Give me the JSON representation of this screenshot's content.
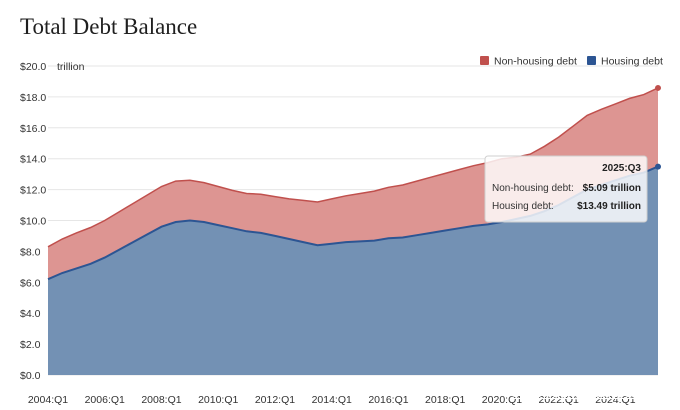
{
  "chart_data": {
    "type": "area",
    "title": "Total Debt Balance",
    "unit_label": "trillion",
    "y_ticks": [
      "$0.0",
      "$2.0",
      "$4.0",
      "$6.0",
      "$8.0",
      "$10.0",
      "$12.0",
      "$14.0",
      "$16.0",
      "$18.0",
      "$20.0"
    ],
    "ylim": [
      0,
      20
    ],
    "x_ticks": [
      "2004:Q1",
      "2006:Q1",
      "2008:Q1",
      "2010:Q1",
      "2012:Q1",
      "2014:Q1",
      "2016:Q1",
      "2018:Q1",
      "2020:Q1",
      "2022:Q1",
      "2024:Q1"
    ],
    "x_start_year": 2004,
    "x_end": 2025.5,
    "stacked": true,
    "series": [
      {
        "name": "Housing debt",
        "color": "#2c5593",
        "fill": "#7391b4",
        "points": [
          [
            2004.0,
            6.2
          ],
          [
            2004.5,
            6.6
          ],
          [
            2005.0,
            6.9
          ],
          [
            2005.5,
            7.2
          ],
          [
            2006.0,
            7.6
          ],
          [
            2006.5,
            8.1
          ],
          [
            2007.0,
            8.6
          ],
          [
            2007.5,
            9.1
          ],
          [
            2008.0,
            9.6
          ],
          [
            2008.5,
            9.9
          ],
          [
            2009.0,
            10.0
          ],
          [
            2009.5,
            9.9
          ],
          [
            2010.0,
            9.7
          ],
          [
            2010.5,
            9.5
          ],
          [
            2011.0,
            9.3
          ],
          [
            2011.5,
            9.2
          ],
          [
            2012.0,
            9.0
          ],
          [
            2012.5,
            8.8
          ],
          [
            2013.0,
            8.6
          ],
          [
            2013.5,
            8.4
          ],
          [
            2014.0,
            8.5
          ],
          [
            2014.5,
            8.6
          ],
          [
            2015.0,
            8.65
          ],
          [
            2015.5,
            8.7
          ],
          [
            2016.0,
            8.85
          ],
          [
            2016.5,
            8.9
          ],
          [
            2017.0,
            9.05
          ],
          [
            2017.5,
            9.2
          ],
          [
            2018.0,
            9.35
          ],
          [
            2018.5,
            9.5
          ],
          [
            2019.0,
            9.65
          ],
          [
            2019.5,
            9.75
          ],
          [
            2020.0,
            9.9
          ],
          [
            2020.5,
            10.1
          ],
          [
            2021.0,
            10.3
          ],
          [
            2021.5,
            10.6
          ],
          [
            2022.0,
            11.0
          ],
          [
            2022.5,
            11.5
          ],
          [
            2023.0,
            12.0
          ],
          [
            2023.5,
            12.3
          ],
          [
            2024.0,
            12.6
          ],
          [
            2024.5,
            12.9
          ],
          [
            2025.0,
            13.1
          ],
          [
            2025.5,
            13.49
          ]
        ]
      },
      {
        "name": "Non-housing debt",
        "color": "#c0504d",
        "fill": "#dd9592",
        "points": [
          [
            2004.0,
            2.1
          ],
          [
            2004.5,
            2.2
          ],
          [
            2005.0,
            2.3
          ],
          [
            2005.5,
            2.35
          ],
          [
            2006.0,
            2.4
          ],
          [
            2006.5,
            2.45
          ],
          [
            2007.0,
            2.5
          ],
          [
            2007.5,
            2.55
          ],
          [
            2008.0,
            2.6
          ],
          [
            2008.5,
            2.65
          ],
          [
            2009.0,
            2.6
          ],
          [
            2009.5,
            2.55
          ],
          [
            2010.0,
            2.5
          ],
          [
            2010.5,
            2.45
          ],
          [
            2011.0,
            2.45
          ],
          [
            2011.5,
            2.5
          ],
          [
            2012.0,
            2.55
          ],
          [
            2012.5,
            2.6
          ],
          [
            2013.0,
            2.7
          ],
          [
            2013.5,
            2.8
          ],
          [
            2014.0,
            2.9
          ],
          [
            2014.5,
            3.0
          ],
          [
            2015.0,
            3.1
          ],
          [
            2015.5,
            3.2
          ],
          [
            2016.0,
            3.3
          ],
          [
            2016.5,
            3.4
          ],
          [
            2017.0,
            3.5
          ],
          [
            2017.5,
            3.6
          ],
          [
            2018.0,
            3.7
          ],
          [
            2018.5,
            3.8
          ],
          [
            2019.0,
            3.9
          ],
          [
            2019.5,
            4.0
          ],
          [
            2020.0,
            4.1
          ],
          [
            2020.5,
            4.0
          ],
          [
            2021.0,
            4.0
          ],
          [
            2021.5,
            4.2
          ],
          [
            2022.0,
            4.4
          ],
          [
            2022.5,
            4.6
          ],
          [
            2023.0,
            4.8
          ],
          [
            2023.5,
            4.9
          ],
          [
            2024.0,
            4.95
          ],
          [
            2024.5,
            5.0
          ],
          [
            2025.0,
            5.05
          ],
          [
            2025.5,
            5.09
          ]
        ]
      }
    ],
    "legend": [
      "Non-housing debt",
      "Housing debt"
    ],
    "legend_position": "top-right",
    "tooltip": {
      "title": "2025:Q3",
      "rows": [
        {
          "label": "Non-housing debt:",
          "value": "$5.09 trillion"
        },
        {
          "label": "Housing debt:",
          "value": "$13.49 trillion"
        }
      ]
    }
  },
  "watermark": "Guowaiwangzhuan.com"
}
